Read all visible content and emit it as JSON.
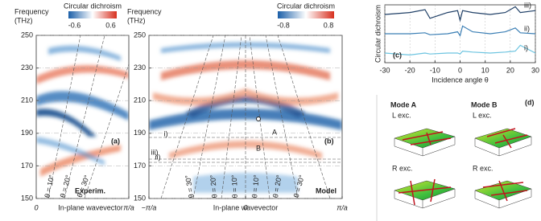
{
  "chart_data": [
    {
      "type": "heatmap",
      "panel": "(a)",
      "ylabel": [
        "Frequency",
        "(THz)"
      ],
      "xlabel": "In-plane wavevector",
      "ylim": [
        150,
        250
      ],
      "yticks": [
        150,
        170,
        190,
        210,
        230,
        250
      ],
      "xlim": [
        0,
        1
      ],
      "xticks": [
        0,
        {
          "value": 1,
          "label": "π/a"
        }
      ],
      "colorbar": {
        "title": "Circular dichroism",
        "clim": [
          -0.8,
          0.8
        ],
        "ticks": [
          -0.6,
          0.6
        ]
      },
      "annotations": [
        "Experim.",
        "θ = 10°",
        "θ = 20°",
        "θ = 30°"
      ]
    },
    {
      "type": "heatmap",
      "panel": "(b)",
      "ylabel": [
        "Frequency",
        "(THz)"
      ],
      "xlabel": "In-plane wavevector",
      "ylim": [
        150,
        250
      ],
      "yticks": [
        150,
        170,
        190,
        210,
        230,
        250
      ],
      "xlim": [
        -1,
        1
      ],
      "xticks": [
        {
          "value": -1,
          "label": "−π/a"
        },
        0,
        {
          "value": 1,
          "label": "π/a"
        }
      ],
      "colorbar": {
        "title": "Circular dichroism",
        "clim": [
          -1,
          1
        ],
        "ticks": [
          -0.8,
          0.8
        ]
      },
      "annotations": [
        "Model",
        "iii)",
        "ii)",
        "i)",
        "A",
        "B",
        "θ = 30°",
        "θ = 20°",
        "θ = 10°",
        "θ = 10°",
        "θ = 20°",
        "θ = 30°"
      ]
    },
    {
      "type": "line",
      "panel": "(c)",
      "ylabel": "Circular dichroism",
      "xlabel": "Incidence angle θ",
      "xlim": [
        -30,
        30
      ],
      "xticks": [
        -30,
        -20,
        -10,
        0,
        10,
        20,
        30
      ],
      "ylim": [
        0,
        3
      ],
      "x": [
        -30,
        -20,
        -14,
        -12,
        -5,
        -1,
        0,
        1,
        5,
        12,
        18,
        22,
        24,
        30
      ],
      "series": [
        {
          "name": "iii)",
          "color": "#1f3f66",
          "values": [
            2.5,
            2.6,
            2.75,
            2.3,
            2.6,
            2.7,
            2.2,
            2.7,
            2.6,
            2.5,
            2.6,
            2.9,
            2.6,
            2.7
          ]
        },
        {
          "name": "ii)",
          "color": "#3b7fb5",
          "values": [
            1.5,
            1.5,
            1.55,
            1.45,
            1.5,
            1.6,
            1.4,
            1.9,
            1.6,
            1.5,
            1.6,
            1.8,
            1.55,
            1.5
          ]
        },
        {
          "name": "i)",
          "color": "#6cc4e0",
          "values": [
            0.5,
            0.4,
            0.5,
            0.45,
            0.5,
            0.5,
            0.45,
            0.6,
            0.55,
            0.5,
            0.55,
            0.6,
            0.9,
            0.5
          ]
        }
      ]
    },
    {
      "type": "diagram",
      "panel": "(d)",
      "modes": [
        "Mode A",
        "Mode B"
      ],
      "rows": [
        "L exc.",
        "R exc."
      ]
    }
  ]
}
